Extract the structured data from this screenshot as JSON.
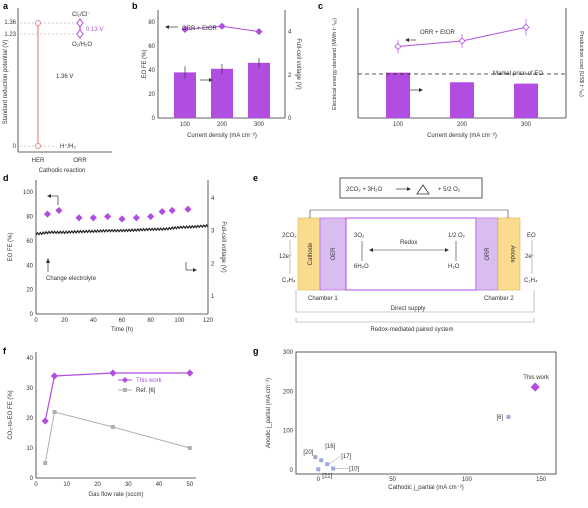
{
  "colors": {
    "purple": "#b14de0",
    "purple_dark": "#8a2bc4",
    "gray": "#b0b0b0",
    "gray_dark": "#888888",
    "orange_fill": "#fbdc8e",
    "lilac_fill": "#d9bdf0",
    "text": "#333333"
  },
  "panels": {
    "a": {
      "letter": "a",
      "ylabel": "Standard reduction potential (V)",
      "xlabel": "Cathodic reaction",
      "categories": [
        "HER",
        "ORR"
      ],
      "yticks": [
        "1.36",
        "1.23",
        "0"
      ],
      "labels": {
        "cl": "Cl₂/Cl⁻",
        "o2": "O₂/H₂O",
        "h": "H⁺/H₂",
        "gap_big": "1.36 V",
        "gap_small": "0.13 V"
      }
    },
    "b": {
      "letter": "b",
      "ylabel": "EO FE (%)",
      "ylabel_right": "Full-cell voltage (V)",
      "xlabel": "Current density (mA cm⁻²)",
      "legend": "ORR + EtOR",
      "yticks": [
        "0",
        "20",
        "40",
        "60",
        "80"
      ],
      "yticks_right": [
        "0",
        "2",
        "4"
      ],
      "xticks": [
        "100",
        "200",
        "300"
      ]
    },
    "c": {
      "letter": "c",
      "ylabel": "Electrical energy demand (MWh t⁻¹ₑₒ)",
      "ylabel_right": "Production cost (US$ t⁻¹ₑₒ)",
      "xlabel": "Current density (mA cm⁻²)",
      "legend": "ORR + EtOR",
      "market": "Market price of EO",
      "xticks": [
        "100",
        "200",
        "300"
      ]
    },
    "d": {
      "letter": "d",
      "ylabel": "EO FE (%)",
      "ylabel_right": "Full-cell voltage (V)",
      "xlabel": "Time (h)",
      "annotation": "Change electrolyte",
      "yticks": [
        "0",
        "20",
        "40",
        "60",
        "80",
        "100"
      ],
      "yticks_right": [
        "1",
        "2",
        "3",
        "4"
      ],
      "xticks": [
        "0",
        "20",
        "40",
        "60",
        "80",
        "100",
        "120"
      ]
    },
    "e": {
      "letter": "e",
      "equation_left": "2CO₂ + 3H₂O",
      "equation_right": "+ 5/2 O₂",
      "cathode": "Cathode",
      "anode": "Anode",
      "oer": "OER",
      "orr": "ORR",
      "co2": "2CO₂",
      "c2h4_left": "C₂H₄",
      "electrons_left": "12e⁻",
      "o2_left": "3O₂",
      "h2o_left": "6H₂O",
      "redox": "Redox",
      "o2_right": "1/2 O₂",
      "h2o_right": "H₂O",
      "eo": "EO",
      "c2h4_right": "C₂H₄",
      "electrons_right": "2e⁻",
      "chamber1": "Chamber 1",
      "chamber2": "Chamber 2",
      "direct": "Direct supply",
      "system": "Redox-mediated paired system"
    },
    "f": {
      "letter": "f",
      "ylabel": "CO₂-to-EO FE (%)",
      "xlabel": "Gas flow rate (sccm)",
      "yticks": [
        "0",
        "10",
        "20",
        "30",
        "40"
      ],
      "xticks": [
        "0",
        "10",
        "20",
        "30",
        "40",
        "50"
      ],
      "legend_this": "This work",
      "legend_ref": "Ref. [6]"
    },
    "g": {
      "letter": "g",
      "ylabel": "Anodic j_partial (mA cm⁻²)",
      "xlabel": "Cathodic j_partial (mA cm⁻²)",
      "yticks": [
        "0",
        "100",
        "200",
        "300"
      ],
      "xticks": [
        "0",
        "50",
        "100",
        "150"
      ],
      "refs": [
        "[20]",
        "[16]",
        "[17]",
        "[10]",
        "[21]",
        "[6]"
      ],
      "this_work": "This work"
    }
  },
  "chart_data": [
    {
      "type": "bar",
      "panel": "b",
      "categories": [
        "100",
        "200",
        "300"
      ],
      "series": [
        {
          "name": "EO FE",
          "values": [
            38,
            41,
            46
          ],
          "errors": [
            5,
            4,
            4
          ]
        },
        {
          "name": "Full-cell voltage",
          "values": [
            4.1,
            4.25,
            4.0
          ]
        }
      ],
      "xlabel": "Current density (mA cm⁻²)",
      "ylabel": "EO FE (%)",
      "ylim": [
        0,
        90
      ],
      "y2lim": [
        0,
        5
      ]
    },
    {
      "type": "bar",
      "panel": "c",
      "categories": [
        "100",
        "200",
        "300"
      ],
      "series": [
        {
          "name": "Production cost",
          "values": [
            3.3,
            2.6,
            2.5
          ]
        },
        {
          "name": "Electrical energy demand",
          "values": [
            5.2,
            5.6,
            6.6
          ],
          "errors": [
            0.5,
            0.5,
            0.6
          ]
        }
      ],
      "market_price": 3.2,
      "ylim": [
        0,
        8
      ]
    },
    {
      "type": "scatter",
      "panel": "d",
      "series": [
        {
          "name": "EO FE",
          "x": [
            8,
            16,
            30,
            40,
            50,
            60,
            70,
            80,
            88,
            95,
            106
          ],
          "y": [
            82,
            85,
            79,
            79,
            80,
            78,
            79,
            80,
            84,
            85,
            86
          ]
        },
        {
          "name": "Full-cell voltage",
          "x": [
            0,
            10,
            20,
            30,
            40,
            50,
            60,
            70,
            80,
            90,
            100,
            110,
            120
          ],
          "y": [
            2.9,
            2.95,
            2.95,
            2.97,
            2.98,
            3.0,
            3.0,
            3.02,
            3.04,
            3.05,
            3.1,
            3.12,
            3.15
          ]
        }
      ],
      "xlim": [
        0,
        120
      ],
      "ylim": [
        0,
        110
      ],
      "y2lim": [
        1,
        4
      ]
    },
    {
      "type": "line",
      "panel": "f",
      "series": [
        {
          "name": "This work",
          "x": [
            3,
            6,
            25,
            50
          ],
          "y": [
            19,
            34,
            35,
            35
          ]
        },
        {
          "name": "Ref. [6]",
          "x": [
            3,
            6,
            25,
            50
          ],
          "y": [
            5,
            22,
            17,
            10
          ]
        }
      ],
      "xlim": [
        0,
        52
      ],
      "ylim": [
        0,
        40
      ]
    },
    {
      "type": "scatter",
      "panel": "g",
      "points": [
        {
          "label": "[20]",
          "x": -2,
          "y": 33
        },
        {
          "label": "[16]",
          "x": 2,
          "y": 25
        },
        {
          "label": "[17]",
          "x": 6,
          "y": 15
        },
        {
          "label": "[10]",
          "x": 10,
          "y": 4
        },
        {
          "label": "[21]",
          "x": 0,
          "y": 2
        },
        {
          "label": "[6]",
          "x": 128,
          "y": 135
        },
        {
          "label": "This work",
          "x": 146,
          "y": 211
        }
      ],
      "xlim": [
        -15,
        160
      ],
      "ylim": [
        -10,
        300
      ]
    }
  ]
}
